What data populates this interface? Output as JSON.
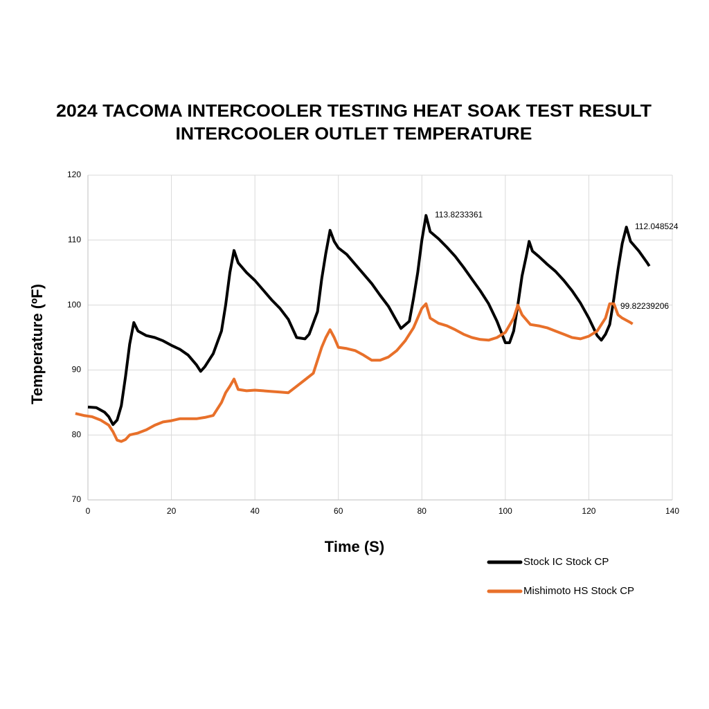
{
  "chart_data": {
    "type": "line",
    "title": [
      "2024 TACOMA INTERCOOLER TESTING HEAT SOAK TEST RESULT",
      "INTERCOOLER OUTLET TEMPERATURE"
    ],
    "x_label": "Time (S)",
    "y_label": "Temperature (ºF)",
    "xlim": [
      0,
      140
    ],
    "ylim": [
      70,
      120
    ],
    "xticks": [
      0,
      20,
      40,
      60,
      80,
      100,
      120,
      140
    ],
    "yticks": [
      70,
      80,
      90,
      100,
      110,
      120
    ],
    "grid": true,
    "legend": "bottom-right",
    "annotations": [
      "113.8233361",
      "112.048524",
      "99.82239206"
    ],
    "series": [
      {
        "name": "Stock IC Stock CP",
        "color": "#000000",
        "x": [
          0,
          2,
          4,
          5,
          6,
          7,
          8,
          9,
          10,
          11,
          12,
          14,
          16,
          18,
          20,
          22,
          24,
          26,
          27,
          28,
          29,
          30,
          32,
          33,
          34,
          35,
          36,
          38,
          40,
          42,
          44,
          46,
          48,
          50,
          52,
          53,
          55,
          56,
          57,
          58,
          59,
          60,
          62,
          64,
          66,
          68,
          70,
          72,
          74,
          75,
          77,
          78,
          79,
          80,
          81,
          82,
          84,
          86,
          88,
          90,
          92,
          94,
          96,
          98,
          100,
          101,
          102,
          103,
          104,
          105,
          105.7,
          106.5,
          108,
          110,
          112,
          114,
          116,
          118,
          120,
          122,
          123,
          124,
          125,
          126,
          127,
          128,
          129,
          130,
          132,
          134,
          134.5
        ],
        "values": [
          84.3,
          84.2,
          83.5,
          82.8,
          81.6,
          82.3,
          84.5,
          89,
          94,
          97.3,
          96,
          95.3,
          95,
          94.5,
          93.8,
          93.2,
          92.3,
          90.8,
          89.8,
          90.5,
          91.5,
          92.5,
          96,
          100,
          105,
          108.4,
          106.5,
          105,
          103.8,
          102.3,
          100.8,
          99.5,
          97.8,
          95,
          94.8,
          95.5,
          99,
          104,
          108,
          111.5,
          109.8,
          108.8,
          107.8,
          106.3,
          104.8,
          103.3,
          101.5,
          99.8,
          97.5,
          96.4,
          97.5,
          101,
          105,
          110,
          113.8,
          111.3,
          110.2,
          108.9,
          107.5,
          105.8,
          104,
          102.2,
          100.2,
          97.5,
          94.2,
          94.2,
          96,
          100,
          104.5,
          107.5,
          109.8,
          108.3,
          107.5,
          106.3,
          105.2,
          103.8,
          102.2,
          100.3,
          98,
          95.3,
          94.6,
          95.5,
          97,
          101,
          105.5,
          109.5,
          112,
          109.8,
          108.3,
          106.5,
          106
        ]
      },
      {
        "name": "Mishimoto HS Stock CP",
        "color": "#e8702a",
        "x": [
          -3,
          -1,
          1,
          3,
          5,
          6,
          7,
          8,
          9,
          10,
          12,
          14,
          16,
          18,
          20,
          22,
          24,
          26,
          28,
          30,
          32,
          33,
          34,
          35,
          36,
          38,
          40,
          42,
          44,
          46,
          48,
          50,
          52,
          54,
          55,
          56,
          57,
          58,
          59,
          60,
          62,
          64,
          66,
          68,
          70,
          72,
          74,
          76,
          78,
          80,
          81,
          82,
          84,
          86,
          88,
          90,
          92,
          94,
          96,
          98,
          100,
          102,
          103,
          104,
          106,
          108,
          110,
          112,
          114,
          116,
          118,
          120,
          122,
          124,
          125,
          126,
          127,
          128,
          130,
          130.5
        ],
        "values": [
          83.3,
          83,
          82.8,
          82.3,
          81.5,
          80.5,
          79.2,
          79,
          79.3,
          80,
          80.3,
          80.8,
          81.5,
          82,
          82.2,
          82.5,
          82.5,
          82.5,
          82.7,
          83,
          85,
          86.5,
          87.5,
          88.6,
          87,
          86.8,
          86.9,
          86.8,
          86.7,
          86.6,
          86.5,
          87.5,
          88.5,
          89.5,
          91.5,
          93.5,
          95,
          96.2,
          95,
          93.5,
          93.3,
          93,
          92.3,
          91.5,
          91.5,
          92,
          93,
          94.5,
          96.5,
          99.5,
          100.2,
          98,
          97.2,
          96.8,
          96.2,
          95.5,
          95,
          94.7,
          94.6,
          95,
          95.8,
          98,
          100,
          98.5,
          97,
          96.8,
          96.5,
          96,
          95.5,
          95,
          94.8,
          95.2,
          96,
          98,
          100.2,
          100.2,
          98.5,
          98,
          97.3,
          97.1
        ]
      }
    ]
  }
}
